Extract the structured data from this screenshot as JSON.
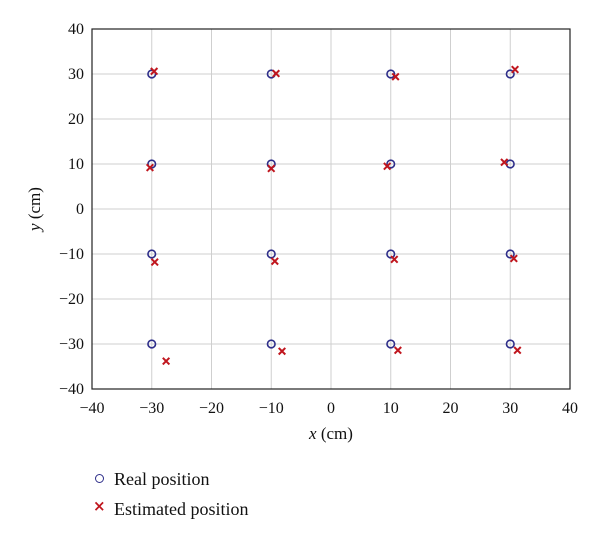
{
  "chart_data": {
    "type": "scatter",
    "xlabel_var": "x",
    "xlabel_unit": "(cm)",
    "ylabel_var": "y",
    "ylabel_unit": "(cm)",
    "xlim": [
      -40,
      40
    ],
    "ylim": [
      -40,
      40
    ],
    "xticks": [
      "−40",
      "−30",
      "−20",
      "−10",
      "0",
      "10",
      "20",
      "30",
      "40"
    ],
    "yticks": [
      "40",
      "30",
      "20",
      "10",
      "0",
      "−10",
      "−20",
      "−30",
      "−40"
    ],
    "grid": true,
    "legend_position": "bottom-left",
    "series": [
      {
        "name": "Real position",
        "marker": "circle",
        "color": "#2e2e8a",
        "points": [
          [
            -30,
            30
          ],
          [
            -10,
            30
          ],
          [
            10,
            30
          ],
          [
            30,
            30
          ],
          [
            -30,
            10
          ],
          [
            -10,
            10
          ],
          [
            10,
            10
          ],
          [
            30,
            10
          ],
          [
            -30,
            -10
          ],
          [
            -10,
            -10
          ],
          [
            10,
            -10
          ],
          [
            30,
            -10
          ],
          [
            -30,
            -30
          ],
          [
            -10,
            -30
          ],
          [
            10,
            -30
          ],
          [
            30,
            -30
          ]
        ]
      },
      {
        "name": "Estimated position",
        "marker": "x",
        "color": "#c0161e",
        "points": [
          [
            -29.6,
            30.6
          ],
          [
            -9.2,
            30.1
          ],
          [
            10.8,
            29.4
          ],
          [
            30.8,
            31
          ],
          [
            -30.3,
            9.2
          ],
          [
            -10,
            9
          ],
          [
            9.4,
            9.5
          ],
          [
            29,
            10.4
          ],
          [
            -29.5,
            -11.8
          ],
          [
            -9.4,
            -11.6
          ],
          [
            10.6,
            -11.2
          ],
          [
            30.6,
            -11
          ],
          [
            -27.6,
            -33.8
          ],
          [
            -8.2,
            -31.6
          ],
          [
            11.2,
            -31.4
          ],
          [
            31.2,
            -31.4
          ]
        ]
      }
    ]
  },
  "legend": {
    "real_label": "Real position",
    "estimated_label": "Estimated position"
  }
}
